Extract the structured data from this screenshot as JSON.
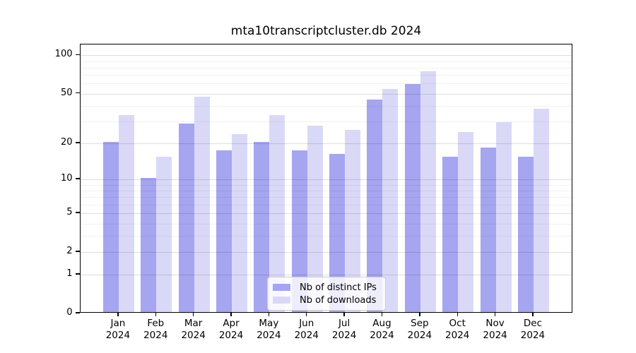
{
  "chart_data": {
    "type": "bar",
    "title": "mta10transcriptcluster.db 2024",
    "categories": [
      "Jan",
      "Feb",
      "Mar",
      "Apr",
      "May",
      "Jun",
      "Jul",
      "Aug",
      "Sep",
      "Oct",
      "Nov",
      "Dec"
    ],
    "year_label": "2024",
    "series": [
      {
        "name": "Nb of distinct IPs",
        "color": "#a5a5f0",
        "values": [
          20,
          10,
          28,
          17,
          20,
          17,
          16,
          44,
          58,
          15,
          18,
          15
        ]
      },
      {
        "name": "Nb of downloads",
        "color": "#d9d9f7",
        "values": [
          33,
          15,
          46,
          23,
          33,
          27,
          25,
          53,
          73,
          24,
          29,
          37
        ]
      }
    ],
    "xlabel": "",
    "ylabel": "",
    "y_axis": {
      "scale": "log1p",
      "ylim": [
        0,
        130
      ],
      "ticks": [
        0,
        1,
        2,
        5,
        10,
        20,
        50,
        100
      ],
      "minor_gridlines": [
        3,
        4,
        6,
        7,
        8,
        9,
        30,
        40,
        60,
        70,
        80,
        90
      ]
    },
    "grid": "on",
    "legend_position": "lower center"
  }
}
